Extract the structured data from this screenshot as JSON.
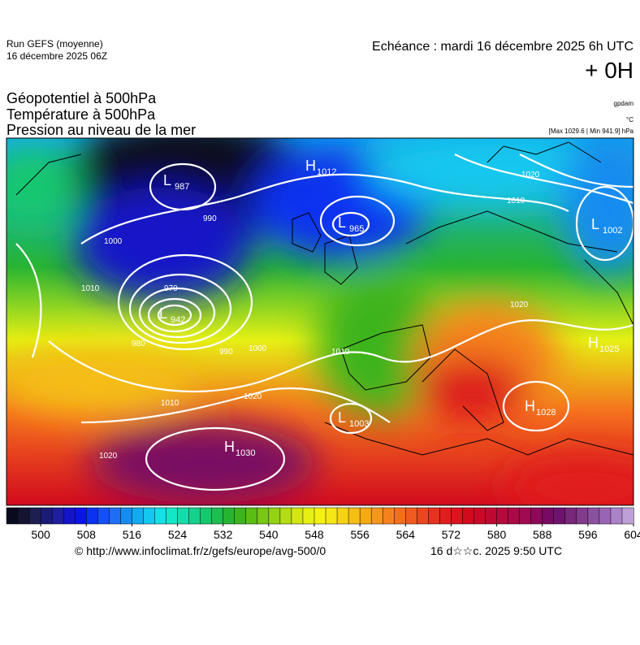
{
  "header": {
    "run": "Run GEFS (moyenne)",
    "run_date": "16 décembre 2025 06Z",
    "echeance": "Echéance : mardi 16 décembre 2025 6h UTC",
    "offset": "+ 0H"
  },
  "fields": [
    "Géopotentiel à 500hPa",
    "Température à 500hPa",
    "Pression au niveau de la mer"
  ],
  "units": [
    "gpdam",
    "°C",
    "[Max 1029.6 | Min 941.9] hPa"
  ],
  "pressure_centers": [
    {
      "kind": "L",
      "value": 987
    },
    {
      "kind": "H",
      "value": 1012
    },
    {
      "kind": "L",
      "value": 965
    },
    {
      "kind": "L",
      "value": 1002
    },
    {
      "kind": "L",
      "value": 942
    },
    {
      "kind": "H",
      "value": 1025
    },
    {
      "kind": "H",
      "value": 1028
    },
    {
      "kind": "L",
      "value": 1003
    },
    {
      "kind": "H",
      "value": 1030
    }
  ],
  "isobar_labels": [
    1000,
    990,
    970,
    980,
    1010,
    1010,
    1020,
    1020,
    1010,
    1020,
    1020,
    990,
    1000,
    1010
  ],
  "colorbar": {
    "range": [
      494,
      604
    ],
    "ticks": [
      500,
      508,
      516,
      524,
      532,
      540,
      548,
      556,
      564,
      572,
      580,
      588,
      596,
      604
    ],
    "colors": [
      "#0a0a1e",
      "#141432",
      "#1e1e50",
      "#1a1a78",
      "#1e1e9e",
      "#1414c8",
      "#0a14e6",
      "#0a32f0",
      "#1450f5",
      "#1e6ef5",
      "#148cf0",
      "#14aaf0",
      "#14c8f0",
      "#14e0e6",
      "#14e6c8",
      "#14dcaa",
      "#14d28c",
      "#14c86e",
      "#1ebe50",
      "#28b432",
      "#3cb41e",
      "#5abe14",
      "#78c814",
      "#96d214",
      "#b4dc14",
      "#d2e614",
      "#e6f014",
      "#f5f014",
      "#f5e614",
      "#f5d214",
      "#f5be14",
      "#f5aa14",
      "#f5961e",
      "#f5821e",
      "#f56e1e",
      "#f05a1e",
      "#eb461e",
      "#e6321e",
      "#e11e1e",
      "#dc141e",
      "#d20a1e",
      "#c80a28",
      "#be0a32",
      "#b40a3c",
      "#aa0a46",
      "#a00a50",
      "#8c0a5a",
      "#780a64",
      "#6e146e",
      "#782878",
      "#823c8c",
      "#8c50a0",
      "#9a64b4",
      "#aa82c8",
      "#bea0d7"
    ]
  },
  "footer": {
    "source": "© http://www.infoclimat.fr/z/gefs/europe/avg-500/0",
    "timestamp": "16 d☆☆c. 2025  9:50 UTC"
  }
}
